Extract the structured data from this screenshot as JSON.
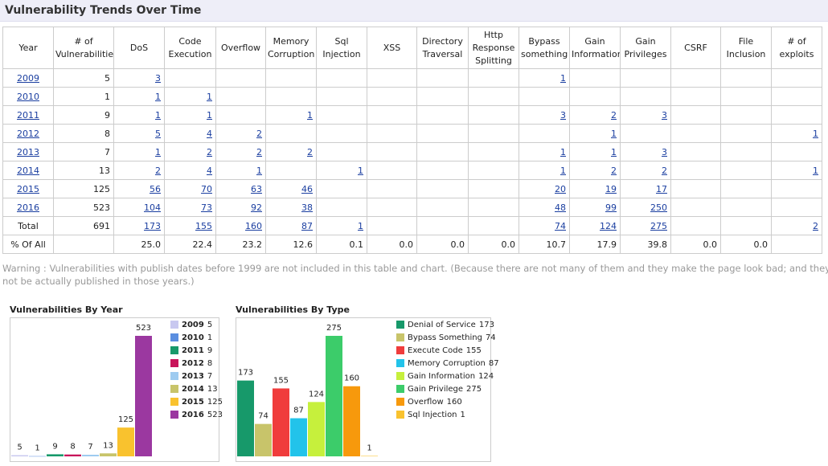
{
  "title": "Vulnerability Trends Over Time",
  "table": {
    "headers": [
      "Year",
      "# of Vulnerabilities",
      "DoS",
      "Code Execution",
      "Overflow",
      "Memory Corruption",
      "Sql Injection",
      "XSS",
      "Directory Traversal",
      "Http Response Splitting",
      "Bypass something",
      "Gain Information",
      "Gain Privileges",
      "CSRF",
      "File Inclusion",
      "# of exploits"
    ],
    "rows": [
      [
        "2009",
        5,
        3,
        null,
        null,
        null,
        null,
        null,
        null,
        null,
        1,
        null,
        null,
        null,
        null,
        null
      ],
      [
        "2010",
        1,
        1,
        1,
        null,
        null,
        null,
        null,
        null,
        null,
        null,
        null,
        null,
        null,
        null,
        null
      ],
      [
        "2011",
        9,
        1,
        1,
        null,
        1,
        null,
        null,
        null,
        null,
        3,
        2,
        3,
        null,
        null,
        null
      ],
      [
        "2012",
        8,
        5,
        4,
        2,
        null,
        null,
        null,
        null,
        null,
        null,
        1,
        null,
        null,
        null,
        1
      ],
      [
        "2013",
        7,
        1,
        2,
        2,
        2,
        null,
        null,
        null,
        null,
        1,
        1,
        3,
        null,
        null,
        null
      ],
      [
        "2014",
        13,
        2,
        4,
        1,
        null,
        1,
        null,
        null,
        null,
        1,
        2,
        2,
        null,
        null,
        1
      ],
      [
        "2015",
        125,
        56,
        70,
        63,
        46,
        null,
        null,
        null,
        null,
        20,
        19,
        17,
        null,
        null,
        null
      ],
      [
        "2016",
        523,
        104,
        73,
        92,
        38,
        null,
        null,
        null,
        null,
        48,
        99,
        250,
        null,
        null,
        null
      ],
      [
        "Total",
        691,
        173,
        155,
        160,
        87,
        1,
        null,
        null,
        null,
        74,
        124,
        275,
        null,
        null,
        2
      ],
      [
        "% Of All",
        null,
        "25.0",
        "22.4",
        "23.2",
        "12.6",
        "0.1",
        "0.0",
        "0.0",
        "0.0",
        "10.7",
        "17.9",
        "39.8",
        "0.0",
        "0.0",
        null
      ]
    ]
  },
  "warning": "Warning : Vulnerabilities with publish dates before 1999 are not included in this table and chart. (Because there are not many of them and they make the page look bad; and they may not be actually published in those years.)",
  "chart_data": [
    {
      "type": "bar",
      "title": "Vulnerabilities By Year",
      "categories": [
        "2009",
        "2010",
        "2011",
        "2012",
        "2013",
        "2014",
        "2015",
        "2016"
      ],
      "values": [
        5,
        1,
        9,
        8,
        7,
        13,
        125,
        523
      ],
      "colors": [
        "#c8c8f0",
        "#5b8ee0",
        "#17996a",
        "#c8145a",
        "#9ecbf0",
        "#c8c46a",
        "#f9c22e",
        "#9b38a0"
      ]
    },
    {
      "type": "bar",
      "title": "Vulnerabilities By Type",
      "categories": [
        "Denial of Service",
        "Bypass Something",
        "Execute Code",
        "Memory Corruption",
        "Gain Information",
        "Gain Privilege",
        "Overflow",
        "Sql Injection"
      ],
      "values": [
        173,
        74,
        155,
        87,
        124,
        275,
        160,
        1
      ],
      "colors": [
        "#17996a",
        "#c8c46a",
        "#f03c3c",
        "#22c3ea",
        "#c6f03c",
        "#3ccc6a",
        "#f7990c",
        "#f9c22e"
      ]
    }
  ]
}
